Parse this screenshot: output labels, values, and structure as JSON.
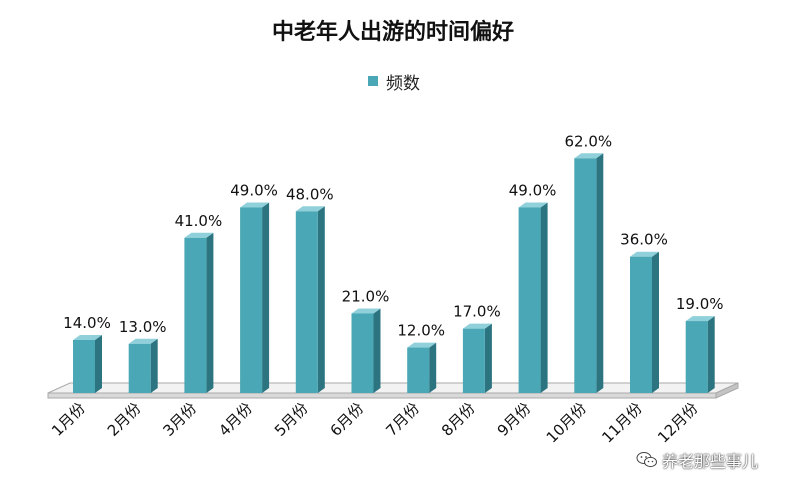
{
  "chart_data": {
    "type": "bar",
    "title": "中老年人出游的时间偏好",
    "legend": {
      "position": "top-center",
      "entries": [
        "频数"
      ]
    },
    "categories": [
      "1月份",
      "2月份",
      "3月份",
      "4月份",
      "5月份",
      "6月份",
      "7月份",
      "8月份",
      "9月份",
      "10月份",
      "11月份",
      "12月份"
    ],
    "series": [
      {
        "name": "频数",
        "values": [
          14.0,
          13.0,
          41.0,
          49.0,
          48.0,
          21.0,
          12.0,
          17.0,
          49.0,
          62.0,
          36.0,
          19.0
        ]
      }
    ],
    "data_labels": [
      "14.0%",
      "13.0%",
      "41.0%",
      "49.0%",
      "48.0%",
      "21.0%",
      "12.0%",
      "17.0%",
      "49.0%",
      "62.0%",
      "36.0%",
      "19.0%"
    ],
    "xlabel": "",
    "ylabel": "",
    "ylim": [
      0,
      70
    ],
    "grid": false,
    "colors": {
      "bar_front": "#4aa7b5",
      "bar_side": "#2c7480",
      "bar_top": "#8fd0da",
      "floor": "#f2f2f2",
      "floor_edge": "#a9a9a9"
    }
  },
  "watermark": {
    "text": "养老那些事儿",
    "icon": "wechat-icon"
  }
}
